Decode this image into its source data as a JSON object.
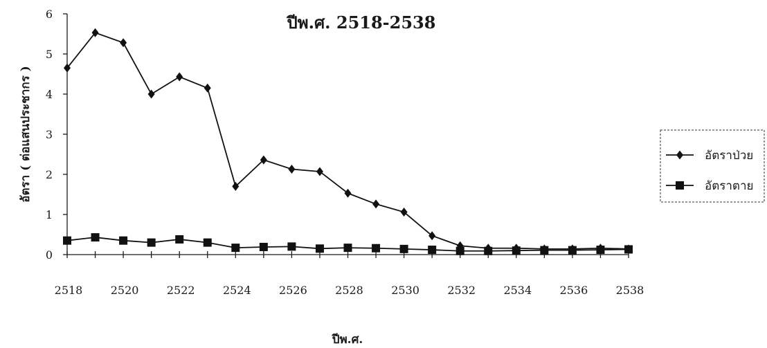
{
  "chart_data": {
    "type": "line",
    "title": "ปีพ.ศ. 2518-2538",
    "xlabel": "ปีพ.ศ.",
    "ylabel": "อัตรา ( ต่อแสนประชากร )",
    "x": [
      2518,
      2519,
      2520,
      2521,
      2522,
      2523,
      2524,
      2525,
      2526,
      2527,
      2528,
      2529,
      2530,
      2531,
      2532,
      2533,
      2534,
      2535,
      2536,
      2537,
      2538
    ],
    "x_tick_labels": [
      "2518",
      "2520",
      "2522",
      "2524",
      "2526",
      "2528",
      "2530",
      "2532",
      "2534",
      "2536",
      "2538"
    ],
    "y_tick_labels": [
      "0",
      "1",
      "2",
      "3",
      "4",
      "5",
      "6"
    ],
    "ylim": [
      0,
      6
    ],
    "xlim": [
      2518,
      2538
    ],
    "grid": false,
    "legend_position": "right",
    "series": [
      {
        "name": "อัตราป่วย",
        "marker": "diamond",
        "values": [
          4.65,
          5.53,
          5.28,
          4.0,
          4.43,
          4.15,
          1.7,
          2.36,
          2.13,
          2.07,
          1.53,
          1.26,
          1.06,
          0.47,
          0.22,
          0.16,
          0.16,
          0.14,
          0.14,
          0.16,
          0.14
        ]
      },
      {
        "name": "อัตราตาย",
        "marker": "square",
        "values": [
          0.35,
          0.43,
          0.35,
          0.3,
          0.38,
          0.3,
          0.17,
          0.19,
          0.2,
          0.15,
          0.17,
          0.16,
          0.14,
          0.12,
          0.09,
          0.09,
          0.1,
          0.11,
          0.11,
          0.12,
          0.13
        ]
      }
    ]
  },
  "colors": {
    "line": "#111111",
    "text": "#1a1a1a",
    "background": "#ffffff"
  }
}
